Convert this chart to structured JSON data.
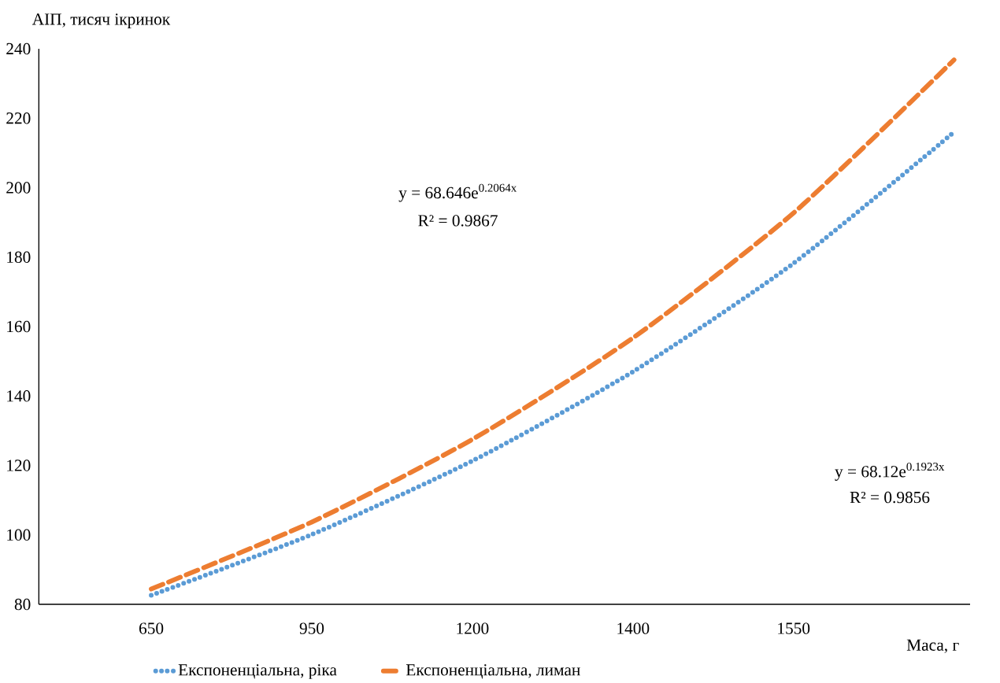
{
  "chart_data": {
    "type": "line",
    "xlabel": "Маса, г",
    "ylabel": "АІП, тисяч ікринок",
    "categories": [
      "650",
      "950",
      "1200",
      "1400",
      "1550",
      null
    ],
    "ylim": [
      80,
      240
    ],
    "yticks": [
      80,
      100,
      120,
      140,
      160,
      180,
      200,
      220,
      240
    ],
    "series": [
      {
        "name": "Експоненціальна,  ріка",
        "color": "#5b9bd5",
        "line_style": "dotted",
        "values": [
          82.6,
          100.1,
          121.3,
          147.0,
          178.2,
          216.0
        ]
      },
      {
        "name": "Експоненціальна,  лиман",
        "color": "#ed7d31",
        "line_style": "dashed",
        "values": [
          84.4,
          103.7,
          127.5,
          156.7,
          192.7,
          236.8
        ]
      }
    ],
    "annotations": [
      "y = 68.646e$^{0.2064x}$",
      "R² = 0.9867",
      "y = 68.12e$^{0.1923x}$",
      "R² = 0.9856"
    ],
    "legend": "bottom",
    "grid": false,
    "marker": "none"
  }
}
